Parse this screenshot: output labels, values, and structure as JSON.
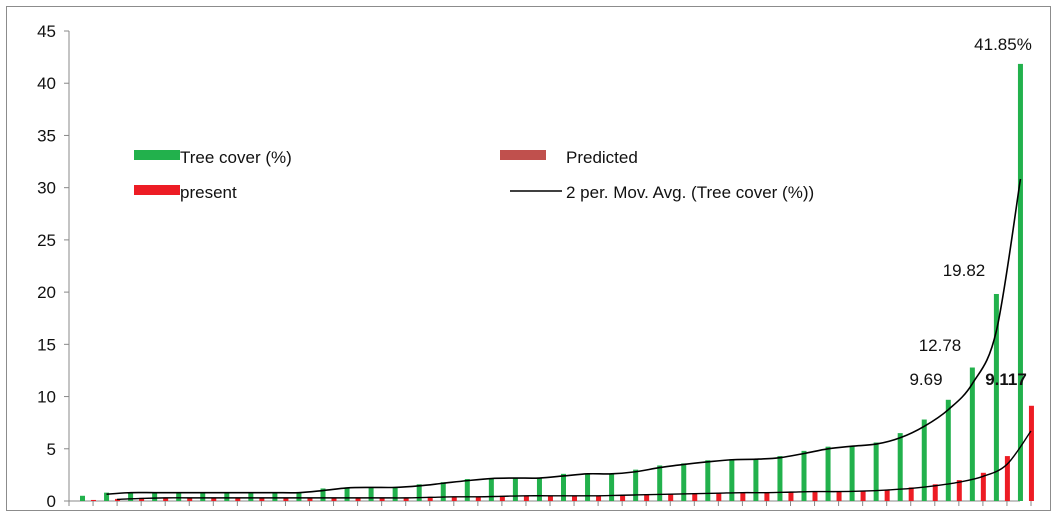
{
  "chart_data": {
    "type": "bar",
    "title": "",
    "xlabel": "",
    "ylabel": "",
    "ylim": [
      0,
      45
    ],
    "yticks": [
      "0",
      "5",
      "10",
      "15",
      "20",
      "25",
      "30",
      "35",
      "40",
      "45"
    ],
    "grid": false,
    "legend_position": "upper-left inside plot",
    "series": [
      {
        "name": "Tree cover (%)",
        "color": "#22b14c",
        "values": [
          0.5,
          0.8,
          0.8,
          0.8,
          0.8,
          0.8,
          0.8,
          0.8,
          0.8,
          0.8,
          1.2,
          1.3,
          1.3,
          1.3,
          1.6,
          1.8,
          2.1,
          2.2,
          2.2,
          2.2,
          2.6,
          2.6,
          2.6,
          3.0,
          3.4,
          3.6,
          3.9,
          4.0,
          4.0,
          4.3,
          4.8,
          5.2,
          5.3,
          5.6,
          6.5,
          7.8,
          9.69,
          12.78,
          19.82,
          41.85
        ]
      },
      {
        "name": "present",
        "color": "#ed1c24",
        "values": [
          0.1,
          0.2,
          0.3,
          0.3,
          0.3,
          0.3,
          0.3,
          0.3,
          0.3,
          0.3,
          0.3,
          0.3,
          0.3,
          0.3,
          0.4,
          0.4,
          0.4,
          0.5,
          0.5,
          0.5,
          0.5,
          0.5,
          0.6,
          0.6,
          0.7,
          0.7,
          0.8,
          0.8,
          0.8,
          0.9,
          0.9,
          0.9,
          1.0,
          1.1,
          1.3,
          1.6,
          2.0,
          2.7,
          4.3,
          9.117
        ]
      },
      {
        "name": "Predicted",
        "color": "#c0504d",
        "values": []
      },
      {
        "name": "2 per. Mov. Avg. (Tree cover (%))",
        "color": "#000000",
        "type": "line"
      }
    ],
    "trendline_present": [
      0.15,
      0.25,
      0.3,
      0.3,
      0.3,
      0.3,
      0.3,
      0.3,
      0.3,
      0.3,
      0.3,
      0.3,
      0.3,
      0.35,
      0.4,
      0.4,
      0.45,
      0.5,
      0.5,
      0.5,
      0.5,
      0.55,
      0.6,
      0.65,
      0.7,
      0.75,
      0.8,
      0.8,
      0.85,
      0.9,
      0.9,
      0.95,
      1.05,
      1.2,
      1.45,
      1.8,
      2.35,
      3.5,
      6.7
    ],
    "annotations": [
      {
        "text": "41.85%",
        "index": 39,
        "value": 41.85,
        "bold": false
      },
      {
        "text": "19.82",
        "index": 38,
        "value": 19.82,
        "bold": false
      },
      {
        "text": "12.78",
        "index": 37,
        "value": 12.78,
        "bold": false
      },
      {
        "text": "9.69",
        "index": 36,
        "value": 9.69,
        "bold": false
      },
      {
        "text": "9.117",
        "index": 39,
        "value": 9.117,
        "bold": true
      }
    ]
  }
}
